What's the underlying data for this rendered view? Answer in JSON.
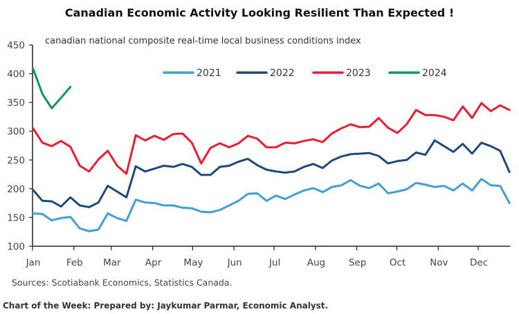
{
  "chart_data": {
    "type": "line",
    "title": "Canadian Economic Activity Looking Resilient Than Expected !",
    "subtitle": "canadian national composite real-time local business conditions index",
    "xlabel": "",
    "ylabel": "",
    "x_unit": "week of year",
    "ylim": [
      100,
      450
    ],
    "yticks": [
      100,
      150,
      200,
      250,
      300,
      350,
      400,
      450
    ],
    "month_ticks": [
      {
        "label": "Jan",
        "week": 0
      },
      {
        "label": "Feb",
        "week": 4.43
      },
      {
        "label": "Mar",
        "week": 8.43
      },
      {
        "label": "Apr",
        "week": 12.86
      },
      {
        "label": "May",
        "week": 17.14
      },
      {
        "label": "Jun",
        "week": 21.57
      },
      {
        "label": "Jul",
        "week": 25.86
      },
      {
        "label": "Aug",
        "week": 30.29
      },
      {
        "label": "Sep",
        "week": 34.71
      },
      {
        "label": "Oct",
        "week": 39
      },
      {
        "label": "Nov",
        "week": 43.43
      },
      {
        "label": "Dec",
        "week": 47.71
      }
    ],
    "grid": false,
    "legend_placement": "top-center",
    "series": [
      {
        "name": "2021",
        "color": "#3f9fd6",
        "values": [
          157,
          156,
          145,
          149,
          151,
          131,
          126,
          129,
          157,
          149,
          144,
          181,
          176,
          175,
          171,
          171,
          167,
          166,
          160,
          159,
          163,
          171,
          179,
          191,
          192,
          179,
          188,
          182,
          190,
          197,
          201,
          194,
          203,
          206,
          215,
          205,
          201,
          209,
          192,
          195,
          199,
          210,
          207,
          203,
          205,
          197,
          209,
          197,
          217,
          206,
          205,
          175
        ]
      },
      {
        "name": "2022",
        "color": "#1d4a7e",
        "values": [
          198,
          179,
          178,
          169,
          185,
          171,
          168,
          176,
          205,
          195,
          185,
          239,
          230,
          235,
          240,
          238,
          243,
          238,
          224,
          224,
          238,
          240,
          247,
          252,
          241,
          233,
          230,
          228,
          230,
          238,
          243,
          236,
          249,
          256,
          260,
          261,
          262,
          257,
          244,
          248,
          250,
          263,
          259,
          284,
          274,
          264,
          278,
          261,
          280,
          274,
          266,
          229
        ]
      },
      {
        "name": "2023",
        "color": "#ec1c2e",
        "values": [
          305,
          280,
          274,
          283,
          273,
          240,
          230,
          251,
          266,
          240,
          226,
          293,
          284,
          292,
          285,
          295,
          296,
          280,
          244,
          271,
          279,
          272,
          279,
          292,
          287,
          272,
          272,
          280,
          279,
          283,
          286,
          281,
          296,
          305,
          312,
          307,
          308,
          323,
          306,
          297,
          312,
          337,
          328,
          328,
          325,
          319,
          343,
          323,
          349,
          335,
          345,
          337
        ]
      },
      {
        "name": "2024",
        "color": "#0a9a55",
        "values": [
          409,
          365,
          340,
          358,
          377
        ]
      }
    ]
  },
  "sources": "Sources: Scotiabank Economics, Statistics Canada.",
  "footer": "Chart of the Week: Prepared by: Jaykumar Parmar, Economic Analyst."
}
